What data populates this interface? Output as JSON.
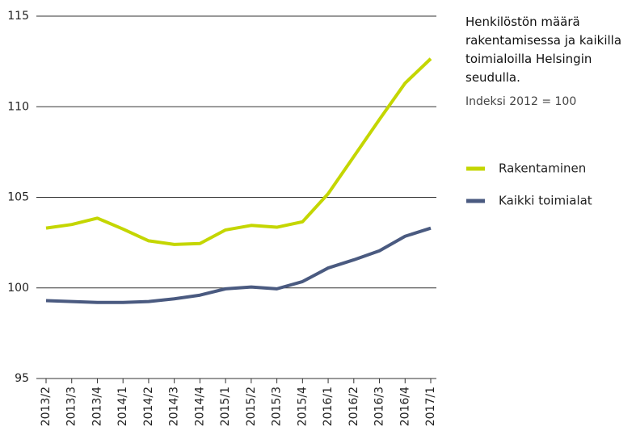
{
  "chart_data": {
    "type": "line",
    "title": "Henkilöstön määrä rakentamisessa ja kaikilla toimialoilla Helsingin seudulla.",
    "subtitle": "Indeksi 2012 = 100",
    "categories": [
      "2013/2",
      "2013/3",
      "2013/4",
      "2014/1",
      "2014/2",
      "2014/3",
      "2014/4",
      "2015/1",
      "2015/2",
      "2015/3",
      "2015/4",
      "2016/1",
      "2016/2",
      "2016/3",
      "2016/4",
      "2017/1"
    ],
    "series": [
      {
        "name": "Rakentaminen",
        "color": "#c4d600",
        "values": [
          103.3,
          103.5,
          103.85,
          103.25,
          102.6,
          102.4,
          102.45,
          103.2,
          103.45,
          103.35,
          103.65,
          105.2,
          107.25,
          109.3,
          111.3,
          112.65
        ]
      },
      {
        "name": "Kaikki toimialat",
        "color": "#4a5a80",
        "values": [
          99.3,
          99.25,
          99.2,
          99.2,
          99.25,
          99.4,
          99.6,
          99.95,
          100.05,
          99.95,
          100.35,
          101.1,
          101.55,
          102.05,
          102.85,
          103.3
        ]
      }
    ],
    "ylim": [
      95,
      115
    ],
    "yticks": [
      95,
      100,
      105,
      110,
      115
    ],
    "grid": true,
    "legend": "right"
  }
}
